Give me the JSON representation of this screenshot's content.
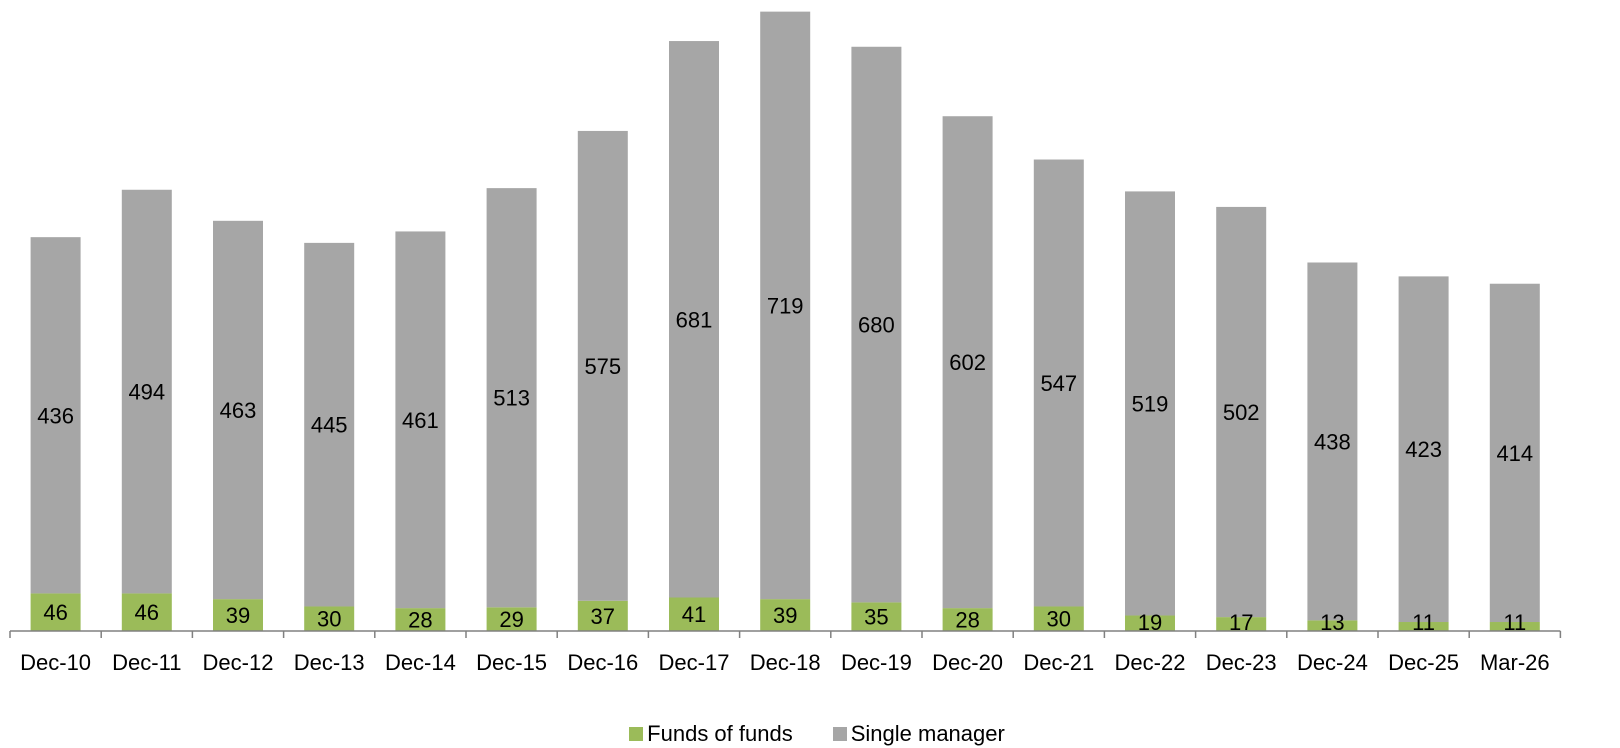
{
  "chart_data": {
    "type": "bar",
    "stacked": true,
    "categories": [
      "Dec-10",
      "Dec-11",
      "Dec-12",
      "Dec-13",
      "Dec-14",
      "Dec-15",
      "Dec-16",
      "Dec-17",
      "Dec-18",
      "Dec-19",
      "Dec-20",
      "Dec-21",
      "Dec-22",
      "Dec-23",
      "Dec-24",
      "Dec-25",
      "Mar-26"
    ],
    "series": [
      {
        "name": "Funds of funds",
        "color": "#9bbb59",
        "values": [
          46,
          46,
          39,
          30,
          28,
          29,
          37,
          41,
          39,
          35,
          28,
          30,
          19,
          17,
          13,
          11,
          11
        ]
      },
      {
        "name": "Single manager",
        "color": "#a6a6a6",
        "values": [
          436,
          494,
          463,
          445,
          461,
          513,
          575,
          681,
          719,
          680,
          602,
          547,
          519,
          502,
          438,
          423,
          414
        ]
      }
    ],
    "data_labels": true,
    "legend_position": "bottom",
    "grid": false,
    "y_axis_visible": false,
    "ylim": [
      0,
      760
    ]
  }
}
